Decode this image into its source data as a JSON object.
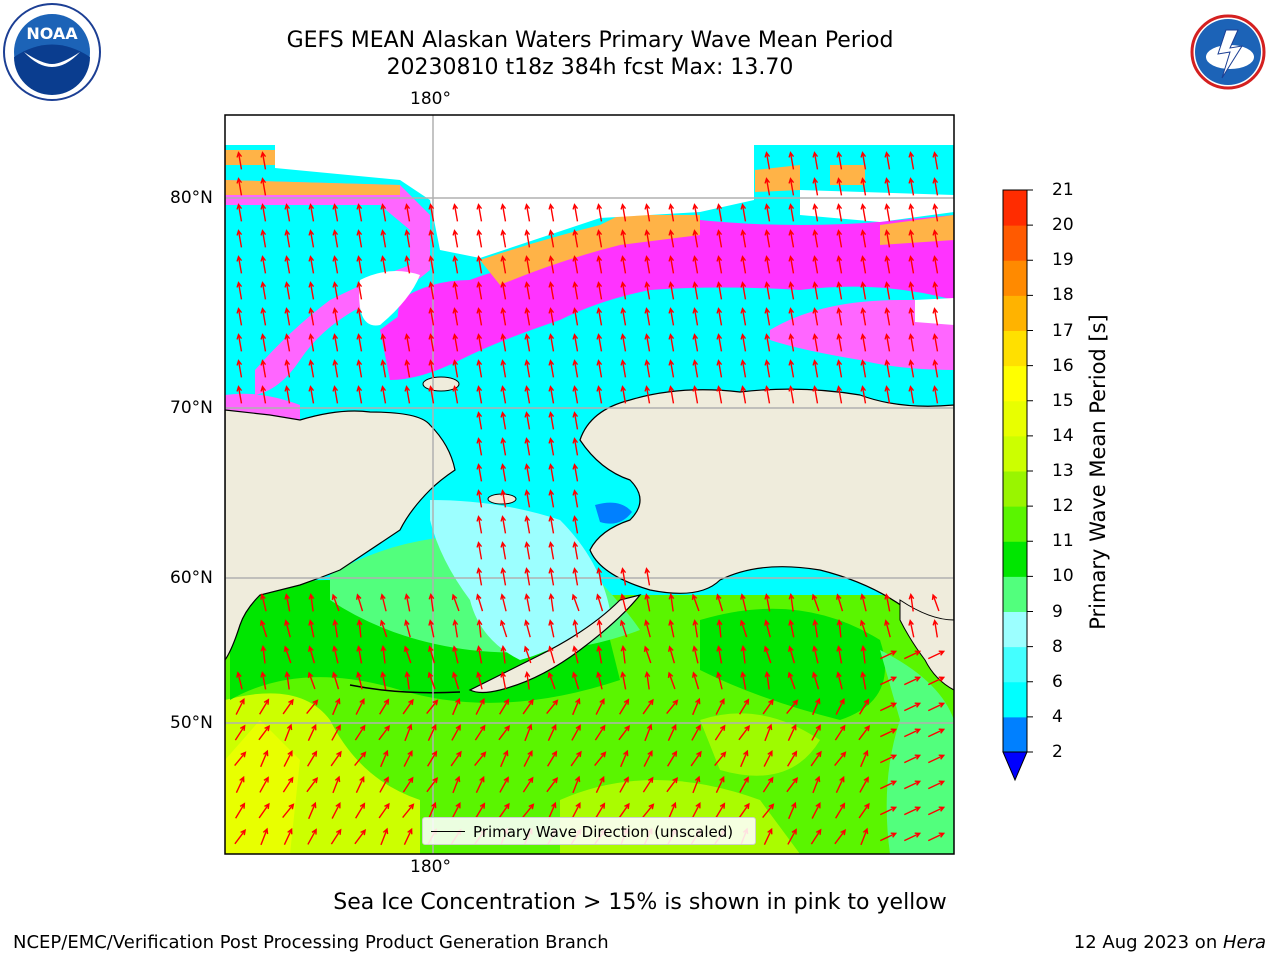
{
  "header": {
    "title_line1": "GEFS MEAN Alaskan Waters Primary Wave Mean Period",
    "title_line2": "20230810 t18z 384h fcst   Max: 13.70"
  },
  "logos": {
    "noaa": "NOAA",
    "nws": "NATIONAL WEATHER SERVICE"
  },
  "map": {
    "lon_label": "180°",
    "lat_labels": [
      "80°N",
      "70°N",
      "60°N",
      "50°N"
    ],
    "legend_label": "Primary Wave Direction (unscaled)",
    "colors": {
      "land": "#efecdc",
      "ocean_blue": "#0080ff",
      "ocean_cyan": "#00ffff",
      "ocean_lightcyan": "#9cffff",
      "ocean_green9": "#52ff7d",
      "ocean_green10": "#00e600",
      "ocean_green11": "#5af500",
      "ocean_lime": "#ccff00",
      "ice_pink": "#ff66ff",
      "ice_magenta": "#ff33ff",
      "ice_orange": "#ffb347",
      "ice_yellow": "#ffdd33",
      "arrow": "#ff0000",
      "grid": "#b0b0b0"
    }
  },
  "colorbar": {
    "title": "Primary Wave Mean Period [s]",
    "ticks": [
      "2",
      "4",
      "6",
      "8",
      "9",
      "10",
      "11",
      "12",
      "13",
      "14",
      "15",
      "16",
      "17",
      "18",
      "19",
      "20",
      "21"
    ],
    "colors": [
      "#0080ff",
      "#00ffff",
      "#44ffff",
      "#9cffff",
      "#52ff7d",
      "#00e600",
      "#5af500",
      "#99f500",
      "#ccff00",
      "#e8ff00",
      "#ffff00",
      "#ffe000",
      "#ffb300",
      "#ff8a00",
      "#ff5a00",
      "#ff2c00"
    ],
    "extend_color": "#0000ff"
  },
  "chart_data": {
    "type": "heatmap",
    "title": "GEFS MEAN Alaskan Waters Primary Wave Mean Period",
    "subtitle": "20230810 t18z 384h fcst   Max: 13.70",
    "colorbar_label": "Primary Wave Mean Period [s]",
    "levels": [
      2,
      4,
      6,
      8,
      9,
      10,
      11,
      12,
      13,
      14,
      15,
      16,
      17,
      18,
      19,
      20,
      21
    ],
    "max": 13.7,
    "x_tick_labels": [
      "180°"
    ],
    "y_tick_labels": [
      "80°N",
      "70°N",
      "60°N",
      "50°N"
    ],
    "legend": "Primary Wave Direction (unscaled)",
    "caption": "Sea Ice Concentration > 15% is shown in pink to yellow"
  },
  "footer": {
    "caption": "Sea Ice Concentration > 15% is shown in pink to yellow",
    "producer": "NCEP/EMC/Verification Post Processing Product Generation Branch",
    "date": "12 Aug 2023 on ",
    "host": "Hera"
  }
}
